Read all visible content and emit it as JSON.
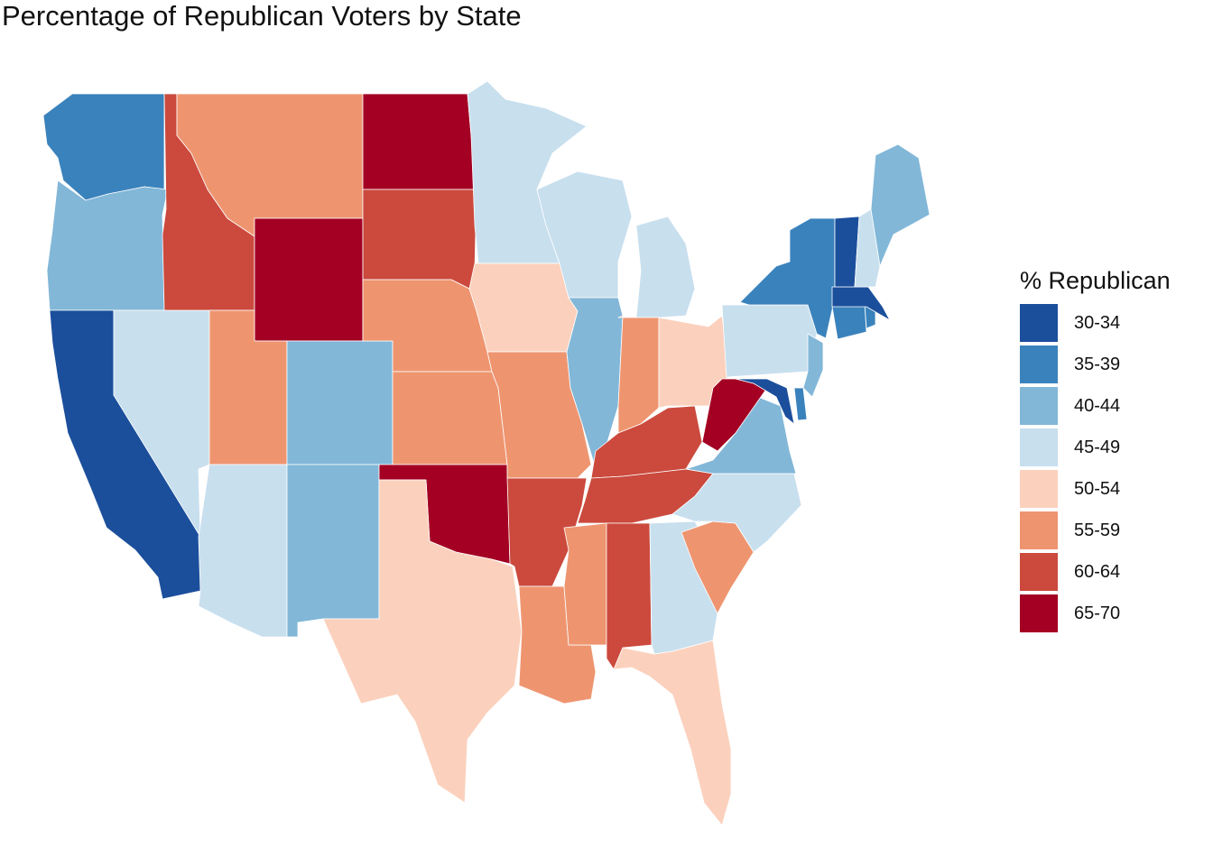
{
  "title": "Percentage of Republican Voters by State",
  "legend": {
    "title": "% Republican",
    "items": [
      {
        "label": "30-34",
        "color": "#1b4f9c"
      },
      {
        "label": "35-39",
        "color": "#3a82bc"
      },
      {
        "label": "40-44",
        "color": "#82b7d8"
      },
      {
        "label": "45-49",
        "color": "#c8dfee"
      },
      {
        "label": "50-54",
        "color": "#fbd1bd"
      },
      {
        "label": "55-59",
        "color": "#ee9570"
      },
      {
        "label": "60-64",
        "color": "#cb4a3d"
      },
      {
        "label": "65-70",
        "color": "#a30023"
      }
    ]
  },
  "states": [
    {
      "name": "Washington",
      "bin": "35-39"
    },
    {
      "name": "Oregon",
      "bin": "40-44"
    },
    {
      "name": "California",
      "bin": "30-34"
    },
    {
      "name": "Nevada",
      "bin": "45-49"
    },
    {
      "name": "Idaho",
      "bin": "60-64"
    },
    {
      "name": "Montana",
      "bin": "55-59"
    },
    {
      "name": "Wyoming",
      "bin": "65-70"
    },
    {
      "name": "Utah",
      "bin": "55-59"
    },
    {
      "name": "Arizona",
      "bin": "45-49"
    },
    {
      "name": "Colorado",
      "bin": "40-44"
    },
    {
      "name": "New Mexico",
      "bin": "40-44"
    },
    {
      "name": "North Dakota",
      "bin": "65-70"
    },
    {
      "name": "South Dakota",
      "bin": "60-64"
    },
    {
      "name": "Nebraska",
      "bin": "55-59"
    },
    {
      "name": "Kansas",
      "bin": "55-59"
    },
    {
      "name": "Oklahoma",
      "bin": "65-70"
    },
    {
      "name": "Texas",
      "bin": "50-54"
    },
    {
      "name": "Minnesota",
      "bin": "45-49"
    },
    {
      "name": "Iowa",
      "bin": "50-54"
    },
    {
      "name": "Missouri",
      "bin": "55-59"
    },
    {
      "name": "Arkansas",
      "bin": "60-64"
    },
    {
      "name": "Louisiana",
      "bin": "55-59"
    },
    {
      "name": "Wisconsin",
      "bin": "45-49"
    },
    {
      "name": "Illinois",
      "bin": "40-44"
    },
    {
      "name": "Michigan",
      "bin": "45-49"
    },
    {
      "name": "Indiana",
      "bin": "55-59"
    },
    {
      "name": "Ohio",
      "bin": "50-54"
    },
    {
      "name": "Kentucky",
      "bin": "60-64"
    },
    {
      "name": "Tennessee",
      "bin": "60-64"
    },
    {
      "name": "Mississippi",
      "bin": "55-59"
    },
    {
      "name": "Alabama",
      "bin": "60-64"
    },
    {
      "name": "Georgia",
      "bin": "45-49"
    },
    {
      "name": "Florida",
      "bin": "50-54"
    },
    {
      "name": "South Carolina",
      "bin": "55-59"
    },
    {
      "name": "North Carolina",
      "bin": "45-49"
    },
    {
      "name": "Virginia",
      "bin": "40-44"
    },
    {
      "name": "West Virginia",
      "bin": "65-70"
    },
    {
      "name": "Maryland",
      "bin": "30-34"
    },
    {
      "name": "Delaware",
      "bin": "35-39"
    },
    {
      "name": "Pennsylvania",
      "bin": "45-49"
    },
    {
      "name": "New Jersey",
      "bin": "40-44"
    },
    {
      "name": "New York",
      "bin": "35-39"
    },
    {
      "name": "Connecticut",
      "bin": "35-39"
    },
    {
      "name": "Rhode Island",
      "bin": "35-39"
    },
    {
      "name": "Massachusetts",
      "bin": "30-34"
    },
    {
      "name": "Vermont",
      "bin": "30-34"
    },
    {
      "name": "New Hampshire",
      "bin": "45-49"
    },
    {
      "name": "Maine",
      "bin": "40-44"
    }
  ]
}
